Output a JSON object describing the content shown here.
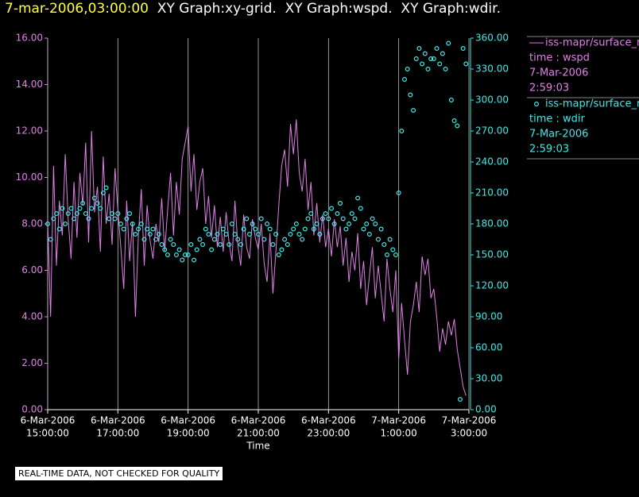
{
  "chart_data": {
    "type": "line",
    "title_time": "7-mar-2006,03:00:00",
    "title": "XY Graph:xy-grid.  XY Graph:wspd.  XY Graph:wdir.",
    "xlabel": "Time",
    "footer": "REAL-TIME DATA, NOT CHECKED FOR QUALITY",
    "grid": true,
    "xlim": [
      "6-Mar-2006 15:00:00",
      "7-Mar-2006 03:00:00"
    ],
    "xticks": [
      {
        "value": "6-Mar-2006 15:00:00",
        "label": [
          "6-Mar-2006",
          "15:00:00"
        ]
      },
      {
        "value": "6-Mar-2006 17:00:00",
        "label": [
          "6-Mar-2006",
          "17:00:00"
        ]
      },
      {
        "value": "6-Mar-2006 19:00:00",
        "label": [
          "6-Mar-2006",
          "19:00:00"
        ]
      },
      {
        "value": "6-Mar-2006 21:00:00",
        "label": [
          "6-Mar-2006",
          "21:00:00"
        ]
      },
      {
        "value": "6-Mar-2006 23:00:00",
        "label": [
          "6-Mar-2006",
          "23:00:00"
        ]
      },
      {
        "value": "7-Mar-2006 01:00:00",
        "label": [
          "7-Mar-2006",
          "1:00:00"
        ]
      },
      {
        "value": "7-Mar-2006 03:00:00",
        "label": [
          "7-Mar-2006",
          "3:00:00"
        ]
      }
    ],
    "ylim": [
      0,
      16
    ],
    "yticks": [
      {
        "value": 0,
        "label": "0.00"
      },
      {
        "value": 2,
        "label": "2.00"
      },
      {
        "value": 4,
        "label": "4.00"
      },
      {
        "value": 6,
        "label": "6.00"
      },
      {
        "value": 8,
        "label": "8.00"
      },
      {
        "value": 10,
        "label": "10.00"
      },
      {
        "value": 12,
        "label": "12.00"
      },
      {
        "value": 14,
        "label": "14.00"
      },
      {
        "value": 16,
        "label": "16.00"
      }
    ],
    "y2lim": [
      0,
      360
    ],
    "y2ticks": [
      {
        "value": 0,
        "label": "0.00"
      },
      {
        "value": 30,
        "label": "30.00"
      },
      {
        "value": 60,
        "label": "60.00"
      },
      {
        "value": 90,
        "label": "90.00"
      },
      {
        "value": 120,
        "label": "120.00"
      },
      {
        "value": 150,
        "label": "150.00"
      },
      {
        "value": 180,
        "label": "180.00"
      },
      {
        "value": 210,
        "label": "210.00"
      },
      {
        "value": 240,
        "label": "240.00"
      },
      {
        "value": 270,
        "label": "270.00"
      },
      {
        "value": 300,
        "label": "300.00"
      },
      {
        "value": 330,
        "label": "330.00"
      },
      {
        "value": 360,
        "label": "360.00"
      }
    ],
    "x": [
      "6-Mar-2006 15:00:00",
      "6-Mar-2006 15:05:00",
      "6-Mar-2006 15:10:00",
      "6-Mar-2006 15:15:00",
      "6-Mar-2006 15:20:00",
      "6-Mar-2006 15:25:00",
      "6-Mar-2006 15:30:00",
      "6-Mar-2006 15:35:00",
      "6-Mar-2006 15:40:00",
      "6-Mar-2006 15:45:00",
      "6-Mar-2006 15:50:00",
      "6-Mar-2006 15:55:00",
      "6-Mar-2006 16:00:00",
      "6-Mar-2006 16:05:00",
      "6-Mar-2006 16:10:00",
      "6-Mar-2006 16:15:00",
      "6-Mar-2006 16:20:00",
      "6-Mar-2006 16:25:00",
      "6-Mar-2006 16:30:00",
      "6-Mar-2006 16:35:00",
      "6-Mar-2006 16:40:00",
      "6-Mar-2006 16:45:00",
      "6-Mar-2006 16:50:00",
      "6-Mar-2006 16:55:00",
      "6-Mar-2006 17:00:00",
      "6-Mar-2006 17:05:00",
      "6-Mar-2006 17:10:00",
      "6-Mar-2006 17:15:00",
      "6-Mar-2006 17:20:00",
      "6-Mar-2006 17:25:00",
      "6-Mar-2006 17:30:00",
      "6-Mar-2006 17:35:00",
      "6-Mar-2006 17:40:00",
      "6-Mar-2006 17:45:00",
      "6-Mar-2006 17:50:00",
      "6-Mar-2006 17:55:00",
      "6-Mar-2006 18:00:00",
      "6-Mar-2006 18:05:00",
      "6-Mar-2006 18:10:00",
      "6-Mar-2006 18:15:00",
      "6-Mar-2006 18:20:00",
      "6-Mar-2006 18:25:00",
      "6-Mar-2006 18:30:00",
      "6-Mar-2006 18:35:00",
      "6-Mar-2006 18:40:00",
      "6-Mar-2006 18:45:00",
      "6-Mar-2006 18:50:00",
      "6-Mar-2006 18:55:00",
      "6-Mar-2006 19:00:00",
      "6-Mar-2006 19:05:00",
      "6-Mar-2006 19:10:00",
      "6-Mar-2006 19:15:00",
      "6-Mar-2006 19:20:00",
      "6-Mar-2006 19:25:00",
      "6-Mar-2006 19:30:00",
      "6-Mar-2006 19:35:00",
      "6-Mar-2006 19:40:00",
      "6-Mar-2006 19:45:00",
      "6-Mar-2006 19:50:00",
      "6-Mar-2006 19:55:00",
      "6-Mar-2006 20:00:00",
      "6-Mar-2006 20:05:00",
      "6-Mar-2006 20:10:00",
      "6-Mar-2006 20:15:00",
      "6-Mar-2006 20:20:00",
      "6-Mar-2006 20:25:00",
      "6-Mar-2006 20:30:00",
      "6-Mar-2006 20:35:00",
      "6-Mar-2006 20:40:00",
      "6-Mar-2006 20:45:00",
      "6-Mar-2006 20:50:00",
      "6-Mar-2006 20:55:00",
      "6-Mar-2006 21:00:00",
      "6-Mar-2006 21:05:00",
      "6-Mar-2006 21:10:00",
      "6-Mar-2006 21:15:00",
      "6-Mar-2006 21:20:00",
      "6-Mar-2006 21:25:00",
      "6-Mar-2006 21:30:00",
      "6-Mar-2006 21:35:00",
      "6-Mar-2006 21:40:00",
      "6-Mar-2006 21:45:00",
      "6-Mar-2006 21:50:00",
      "6-Mar-2006 21:55:00",
      "6-Mar-2006 22:00:00",
      "6-Mar-2006 22:05:00",
      "6-Mar-2006 22:10:00",
      "6-Mar-2006 22:15:00",
      "6-Mar-2006 22:20:00",
      "6-Mar-2006 22:25:00",
      "6-Mar-2006 22:30:00",
      "6-Mar-2006 22:35:00",
      "6-Mar-2006 22:40:00",
      "6-Mar-2006 22:45:00",
      "6-Mar-2006 22:50:00",
      "6-Mar-2006 22:55:00",
      "6-Mar-2006 23:00:00",
      "6-Mar-2006 23:05:00",
      "6-Mar-2006 23:10:00",
      "6-Mar-2006 23:15:00",
      "6-Mar-2006 23:20:00",
      "6-Mar-2006 23:25:00",
      "6-Mar-2006 23:30:00",
      "6-Mar-2006 23:35:00",
      "6-Mar-2006 23:40:00",
      "6-Mar-2006 23:45:00",
      "6-Mar-2006 23:50:00",
      "6-Mar-2006 23:55:00",
      "7-Mar-2006 00:00:00",
      "7-Mar-2006 00:05:00",
      "7-Mar-2006 00:10:00",
      "7-Mar-2006 00:15:00",
      "7-Mar-2006 00:20:00",
      "7-Mar-2006 00:25:00",
      "7-Mar-2006 00:30:00",
      "7-Mar-2006 00:35:00",
      "7-Mar-2006 00:40:00",
      "7-Mar-2006 00:45:00",
      "7-Mar-2006 00:50:00",
      "7-Mar-2006 00:55:00",
      "7-Mar-2006 01:00:00",
      "7-Mar-2006 01:05:00",
      "7-Mar-2006 01:10:00",
      "7-Mar-2006 01:15:00",
      "7-Mar-2006 01:20:00",
      "7-Mar-2006 01:25:00",
      "7-Mar-2006 01:30:00",
      "7-Mar-2006 01:35:00",
      "7-Mar-2006 01:40:00",
      "7-Mar-2006 01:45:00",
      "7-Mar-2006 01:50:00",
      "7-Mar-2006 01:55:00",
      "7-Mar-2006 02:00:00",
      "7-Mar-2006 02:05:00",
      "7-Mar-2006 02:10:00",
      "7-Mar-2006 02:15:00",
      "7-Mar-2006 02:20:00",
      "7-Mar-2006 02:25:00",
      "7-Mar-2006 02:30:00",
      "7-Mar-2006 02:35:00",
      "7-Mar-2006 02:40:00",
      "7-Mar-2006 02:45:00",
      "7-Mar-2006 02:50:00",
      "7-Mar-2006 02:55:00"
    ],
    "series": [
      {
        "name": "iss-mapr/surface_m",
        "legend_detail": [
          "time : wspd",
          "7-Mar-2006",
          "2:59:03"
        ],
        "type": "line",
        "axis": "y",
        "color": "#e080e8",
        "values": [
          8.1,
          4.0,
          10.5,
          6.2,
          9.0,
          7.5,
          11.0,
          8.2,
          6.5,
          9.8,
          7.4,
          10.2,
          8.8,
          11.5,
          7.2,
          12.0,
          8.5,
          9.6,
          6.8,
          10.9,
          8.0,
          9.3,
          7.1,
          10.4,
          8.6,
          7.0,
          5.2,
          9.0,
          6.4,
          8.1,
          4.0,
          7.5,
          9.5,
          6.2,
          8.8,
          7.3,
          6.5,
          8.0,
          7.2,
          9.1,
          6.8,
          8.6,
          10.2,
          7.5,
          9.8,
          8.4,
          10.8,
          11.5,
          12.2,
          9.4,
          11.0,
          8.6,
          9.8,
          10.4,
          8.0,
          9.2,
          7.4,
          8.8,
          7.0,
          8.3,
          6.8,
          8.5,
          7.2,
          6.4,
          9.0,
          7.1,
          6.2,
          8.4,
          7.0,
          6.5,
          8.2,
          7.4,
          6.9,
          8.0,
          6.3,
          5.5,
          7.6,
          5.0,
          6.8,
          8.8,
          10.5,
          11.2,
          9.6,
          12.3,
          11.0,
          12.5,
          10.2,
          9.4,
          10.8,
          8.6,
          9.8,
          7.5,
          8.9,
          7.2,
          8.4,
          7.0,
          7.8,
          6.6,
          8.2,
          7.0,
          7.9,
          6.2,
          7.4,
          5.5,
          6.8,
          6.0,
          7.6,
          5.2,
          6.4,
          4.5,
          5.8,
          7.0,
          4.8,
          6.2,
          5.0,
          3.8,
          6.5,
          5.2,
          4.2,
          6.0,
          2.2,
          4.6,
          3.0,
          1.5,
          3.8,
          4.5,
          5.5,
          4.2,
          6.6,
          5.8,
          6.5,
          4.8,
          5.2,
          4.0,
          2.5,
          3.5,
          2.8,
          3.8,
          3.2,
          3.9,
          2.6,
          1.8,
          1.0,
          0.6
        ]
      },
      {
        "name": "iss-mapr/surface_m",
        "legend_detail": [
          "time : wdir",
          "7-Mar-2006",
          "2:59:03"
        ],
        "type": "scatter",
        "axis": "y2",
        "color": "#40e8e8",
        "values": [
          180,
          165,
          185,
          190,
          175,
          195,
          180,
          190,
          195,
          185,
          190,
          195,
          200,
          190,
          185,
          195,
          205,
          200,
          195,
          210,
          215,
          185,
          190,
          185,
          190,
          180,
          175,
          185,
          190,
          180,
          170,
          175,
          180,
          165,
          175,
          170,
          175,
          165,
          170,
          160,
          155,
          150,
          165,
          160,
          150,
          155,
          145,
          150,
          150,
          160,
          145,
          155,
          165,
          160,
          175,
          170,
          155,
          165,
          170,
          160,
          175,
          170,
          160,
          180,
          170,
          165,
          160,
          175,
          185,
          170,
          180,
          175,
          170,
          185,
          165,
          180,
          175,
          160,
          170,
          150,
          155,
          165,
          160,
          170,
          175,
          180,
          170,
          165,
          175,
          185,
          190,
          175,
          180,
          170,
          185,
          190,
          185,
          195,
          180,
          190,
          200,
          185,
          175,
          180,
          190,
          185,
          205,
          195,
          175,
          180,
          170,
          185,
          180,
          165,
          175,
          160,
          150,
          165,
          155,
          150,
          210,
          270,
          320,
          330,
          305,
          290,
          340,
          350,
          335,
          345,
          330,
          340,
          340,
          350,
          335,
          345,
          330,
          355,
          300,
          280,
          275,
          10,
          350,
          335
        ]
      }
    ]
  }
}
